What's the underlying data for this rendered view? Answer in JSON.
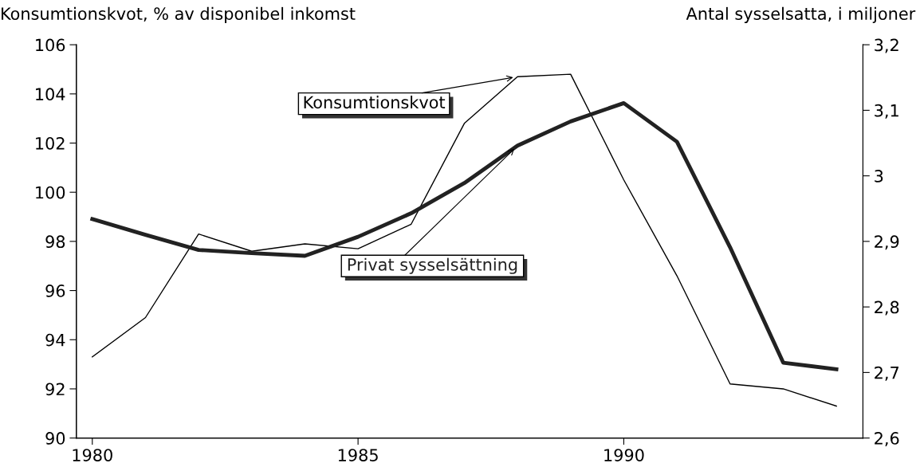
{
  "chart_data": {
    "type": "line",
    "ylabel": "Konsumtionskvot, % av disponibel inkomst",
    "y2label": "Antal sysselsatta, i miljoner",
    "x": [
      1980,
      1981,
      1982,
      1983,
      1984,
      1985,
      1986,
      1987,
      1988,
      1989,
      1990,
      1991,
      1992,
      1993,
      1994
    ],
    "series": [
      {
        "name": "Konsumtionskvot",
        "color": "#000000",
        "values": [
          93.3,
          94.9,
          98.3,
          97.6,
          97.9,
          97.7,
          98.7,
          102.8,
          104.7,
          104.8,
          100.5,
          96.6,
          92.2,
          92.0,
          91.3
        ]
      },
      {
        "name": "Privat sysselsättning",
        "color": "#222222",
        "axis": "y2",
        "values": [
          2.934,
          2.91,
          2.887,
          2.882,
          2.878,
          2.907,
          2.943,
          2.989,
          3.046,
          3.083,
          3.111,
          3.052,
          2.891,
          2.715,
          2.705
        ]
      }
    ],
    "xlim": [
      1979.7,
      1994.5
    ],
    "xticks": [
      1980,
      1985,
      1990
    ],
    "ylim": [
      90,
      106
    ],
    "yticks": [
      90,
      92,
      94,
      96,
      98,
      100,
      102,
      104,
      106
    ],
    "y2lim": [
      2.6,
      3.2
    ],
    "y2ticks": [
      {
        "value": 2.6,
        "label": "2,6"
      },
      {
        "value": 2.7,
        "label": "2,7"
      },
      {
        "value": 2.8,
        "label": "2,8"
      },
      {
        "value": 2.9,
        "label": "2,9"
      },
      3,
      {
        "value": 3.1,
        "label": "3,1"
      },
      {
        "value": 3.2,
        "label": "3,2"
      }
    ],
    "grid": false,
    "legend": false,
    "marker": "none",
    "line_style": "solid"
  }
}
